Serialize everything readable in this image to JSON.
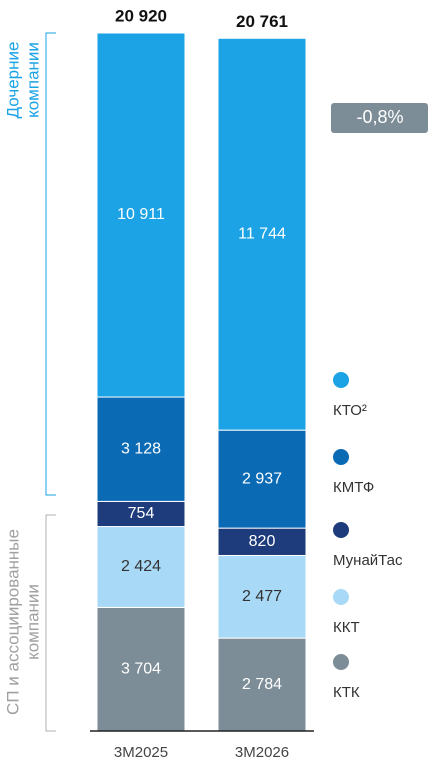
{
  "chart_data": {
    "type": "stacked_bar",
    "categories": [
      "3M2025",
      "3M2026"
    ],
    "totals": [
      20920,
      20761
    ],
    "total_labels": [
      "20 920",
      "20 761"
    ],
    "series": [
      {
        "name": "КТО²",
        "color": "#1ba3e6",
        "values": [
          10911,
          11744
        ],
        "value_labels": [
          "10 911",
          "11 744"
        ]
      },
      {
        "name": "КМТФ",
        "color": "#0a6ab4",
        "values": [
          3128,
          2937
        ],
        "value_labels": [
          "3 128",
          "2 937"
        ]
      },
      {
        "name": "МунайТас",
        "color": "#1e3c7b",
        "values": [
          754,
          820
        ],
        "value_labels": [
          "754",
          "820"
        ]
      },
      {
        "name": "ККТ",
        "color": "#a8d9f6",
        "values": [
          2424,
          2477
        ],
        "value_labels": [
          "2 424",
          "2 477"
        ]
      },
      {
        "name": "КТК",
        "color": "#7c8d98",
        "values": [
          3704,
          2784
        ],
        "value_labels": [
          "3 704",
          "2 784"
        ]
      }
    ],
    "annotation": "-0,8%",
    "group_labels": [
      [
        "Дочерние",
        "компании"
      ],
      [
        "СП и ассоциированные",
        "компании"
      ]
    ]
  }
}
